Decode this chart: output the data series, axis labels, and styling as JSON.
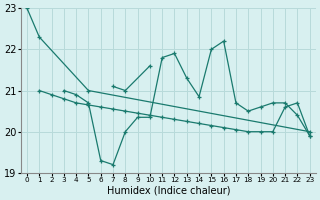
{
  "xlabel": "Humidex (Indice chaleur)",
  "bg_color": "#d8f0f0",
  "grid_color": "#b8dada",
  "line_color": "#1a7a6e",
  "xlim": [
    -0.5,
    23.5
  ],
  "ylim": [
    19,
    23
  ],
  "yticks": [
    19,
    20,
    21,
    22,
    23
  ],
  "xticks": [
    0,
    1,
    2,
    3,
    4,
    5,
    6,
    7,
    8,
    9,
    10,
    11,
    12,
    13,
    14,
    15,
    16,
    17,
    18,
    19,
    20,
    21,
    22,
    23
  ],
  "series": [
    [
      [
        0,
        1,
        5,
        23
      ],
      [
        23.0,
        22.3,
        21.0,
        20.0
      ]
    ],
    [
      [
        3,
        4,
        5,
        6,
        7,
        8,
        9,
        10,
        11,
        12,
        13,
        14,
        15,
        16,
        17,
        18,
        19,
        20,
        21,
        22,
        23
      ],
      [
        21.0,
        20.9,
        20.7,
        19.3,
        19.2,
        20.0,
        20.35,
        20.35,
        21.8,
        21.9,
        21.3,
        20.85,
        22.0,
        22.2,
        20.7,
        20.5,
        20.6,
        20.7,
        20.7,
        20.4,
        19.9
      ]
    ],
    [
      [
        7,
        8,
        10
      ],
      [
        21.1,
        21.0,
        21.6
      ]
    ],
    [
      [
        1,
        2,
        3,
        4,
        5,
        6,
        7,
        8,
        9,
        10,
        11,
        12,
        13,
        14,
        15,
        16,
        17,
        18,
        19,
        20,
        21,
        22,
        23
      ],
      [
        21.0,
        20.9,
        20.8,
        20.7,
        20.65,
        20.6,
        20.55,
        20.5,
        20.45,
        20.4,
        20.35,
        20.3,
        20.25,
        20.2,
        20.15,
        20.1,
        20.05,
        20.0,
        20.0,
        20.0,
        20.6,
        20.7,
        19.9
      ]
    ]
  ]
}
